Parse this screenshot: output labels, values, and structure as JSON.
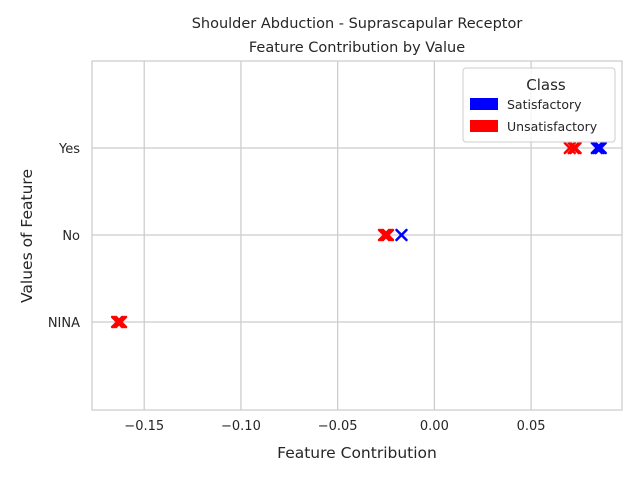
{
  "chart_data": {
    "type": "scatter",
    "title_line1": "Shoulder Abduction - Suprascapular Receptor",
    "title_line2": "Feature Contribution by Value",
    "xlabel": "Feature Contribution",
    "ylabel": "Values of Feature",
    "xlim": [
      -0.177,
      0.097
    ],
    "x_ticks": [
      -0.15,
      -0.1,
      -0.05,
      0.0,
      0.05
    ],
    "x_tick_labels": [
      "−0.15",
      "−0.10",
      "−0.05",
      "0.00",
      "0.05"
    ],
    "categories": [
      "Yes",
      "No",
      "NINA"
    ],
    "grid": true,
    "legend": {
      "title": "Class",
      "placement": "top-right",
      "entries": [
        {
          "label": "Satisfactory",
          "color": "#0000ff"
        },
        {
          "label": "Unsatisfactory",
          "color": "#ff0000"
        }
      ]
    },
    "series": [
      {
        "name": "Satisfactory",
        "color": "#0000ff",
        "marker": "x",
        "points": [
          {
            "category": "Yes",
            "x": 0.084
          },
          {
            "category": "Yes",
            "x": 0.085
          },
          {
            "category": "Yes",
            "x": 0.086
          },
          {
            "category": "No",
            "x": -0.017
          }
        ]
      },
      {
        "name": "Unsatisfactory",
        "color": "#ff0000",
        "marker": "x",
        "points": [
          {
            "category": "Yes",
            "x": 0.07
          },
          {
            "category": "Yes",
            "x": 0.072
          },
          {
            "category": "Yes",
            "x": 0.073
          },
          {
            "category": "No",
            "x": -0.026
          },
          {
            "category": "No",
            "x": -0.025
          },
          {
            "category": "No",
            "x": -0.024
          },
          {
            "category": "NINA",
            "x": -0.164
          },
          {
            "category": "NINA",
            "x": -0.163
          },
          {
            "category": "NINA",
            "x": -0.162
          }
        ]
      }
    ]
  }
}
